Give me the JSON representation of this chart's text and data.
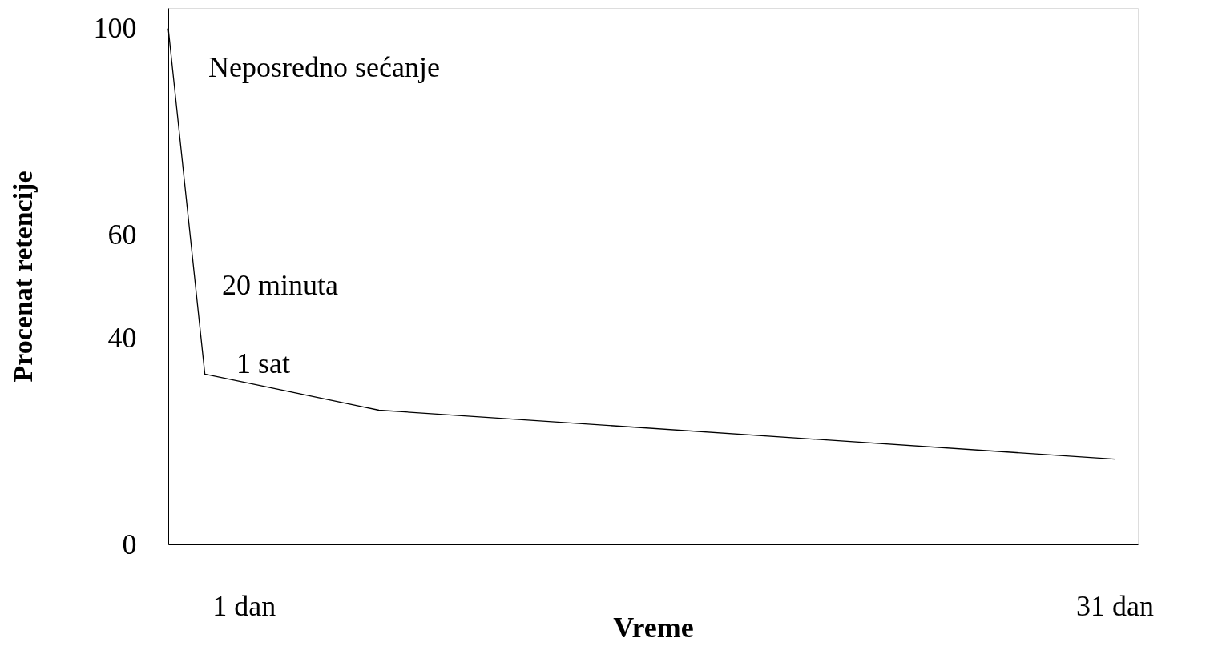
{
  "chart_data": {
    "type": "line",
    "xlabel": "Vreme",
    "ylabel": "Procenat retencije",
    "x": [
      -1.6,
      -0.34,
      5.66,
      31
    ],
    "series": [
      {
        "color": "#000000",
        "values": [
          100,
          33,
          26,
          16.5
        ]
      }
    ],
    "xlim": [
      -1.6,
      31.8
    ],
    "ylim": [
      0,
      104
    ],
    "xticks": [
      {
        "value": 1,
        "label": "1 dan"
      },
      {
        "value": 31,
        "label": "31 dan"
      }
    ],
    "yticks": [
      0,
      40,
      60,
      100
    ],
    "annotations": [
      "Neposredno sećanje",
      "20 minuta",
      "1 sat"
    ],
    "grid": false,
    "marker": "none",
    "line_style": "solid"
  }
}
